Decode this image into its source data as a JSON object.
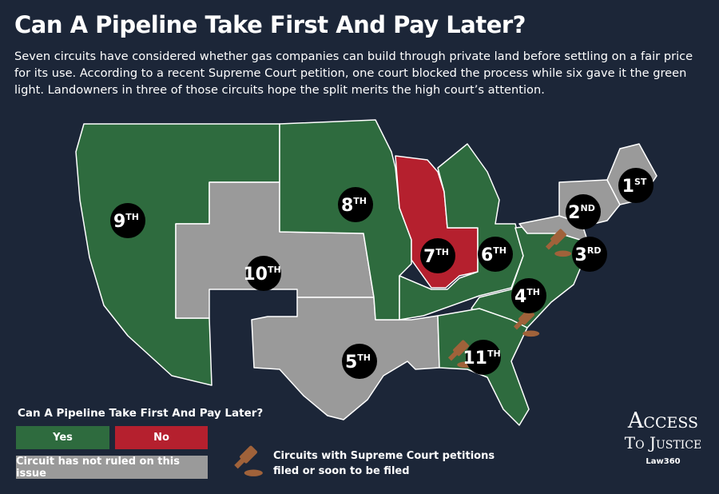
{
  "header": {
    "title": "Can A Pipeline Take First And Pay Later?",
    "subtitle": "Seven circuits have considered whether gas companies can build through private land before settling on a fair price for its use. According to a recent Supreme Court petition, one court blocked the process while six gave it the green light. Landowners in three of those circuits hope the split merits the high court’s attention."
  },
  "map": {
    "circuits": [
      {
        "number": "9",
        "suffix": "TH"
      },
      {
        "number": "10",
        "suffix": "TH"
      },
      {
        "number": "8",
        "suffix": "TH"
      },
      {
        "number": "7",
        "suffix": "TH"
      },
      {
        "number": "6",
        "suffix": "TH"
      },
      {
        "number": "5",
        "suffix": "TH"
      },
      {
        "number": "4",
        "suffix": "TH"
      },
      {
        "number": "11",
        "suffix": "TH"
      },
      {
        "number": "3",
        "suffix": "RD"
      },
      {
        "number": "2",
        "suffix": "ND"
      },
      {
        "number": "1",
        "suffix": "ST"
      }
    ]
  },
  "legend": {
    "title": "Can A Pipeline Take First And Pay Later?",
    "yes": "Yes",
    "no": "No",
    "not_ruled": "Circuit has not ruled on this issue",
    "petitions": "Circuits with Supreme Court petitions filed or soon to be filed"
  },
  "logo": {
    "line1": "Access",
    "line2": "To Justice",
    "brand": "Law360"
  }
}
